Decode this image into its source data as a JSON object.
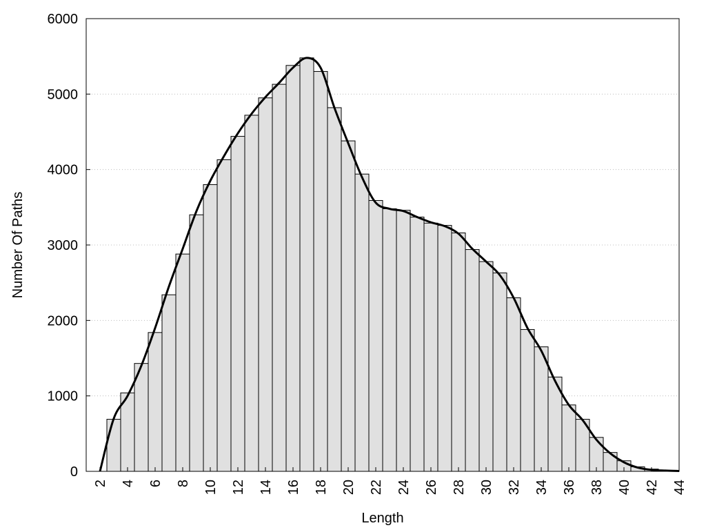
{
  "chart_data": {
    "type": "histogram",
    "xlabel": "Length",
    "ylabel": "Number Of Paths",
    "bins": [
      2.5,
      3.5,
      4.5,
      5.5,
      6.5,
      7.5,
      8.5,
      9.5,
      10.5,
      11.5,
      12.5,
      13.5,
      14.5,
      15.5,
      16.5,
      17.5,
      18.5,
      19.5,
      20.5,
      21.5,
      22.5,
      23.5,
      24.5,
      25.5,
      26.5,
      27.5,
      28.5,
      29.5,
      30.5,
      31.5,
      32.5,
      33.5,
      34.5,
      35.5,
      36.5,
      37.5,
      38.5,
      39.5,
      40.5,
      41.5,
      42.5,
      43.5
    ],
    "values": [
      690,
      1040,
      1430,
      1840,
      2340,
      2880,
      3400,
      3800,
      4130,
      4440,
      4720,
      4950,
      5130,
      5380,
      5480,
      5300,
      4820,
      4380,
      3940,
      3590,
      3480,
      3460,
      3370,
      3290,
      3260,
      3160,
      2940,
      2780,
      2630,
      2300,
      1880,
      1650,
      1250,
      880,
      690,
      450,
      250,
      140,
      60,
      30,
      10
    ],
    "color": "#e0e0e0",
    "curve": {
      "color": "#000000",
      "x": [
        2,
        3,
        4,
        5,
        6,
        7,
        8,
        9,
        10,
        11,
        12,
        13,
        14,
        15,
        16,
        17,
        18,
        19,
        20,
        21,
        22,
        23,
        24,
        25,
        26,
        27,
        28,
        29,
        30,
        31,
        32,
        33,
        34,
        35,
        36,
        37,
        38,
        39,
        40,
        41,
        42,
        43,
        44
      ],
      "values": [
        0,
        700,
        1000,
        1400,
        1900,
        2450,
        2950,
        3450,
        3850,
        4180,
        4480,
        4740,
        4960,
        5150,
        5350,
        5480,
        5350,
        4820,
        4350,
        3900,
        3560,
        3480,
        3450,
        3370,
        3300,
        3250,
        3150,
        2950,
        2780,
        2600,
        2300,
        1900,
        1600,
        1200,
        880,
        680,
        420,
        240,
        120,
        50,
        20,
        10,
        5
      ]
    },
    "xlim": [
      1,
      44
    ],
    "xticks": [
      2,
      4,
      6,
      8,
      10,
      12,
      14,
      16,
      18,
      20,
      22,
      24,
      26,
      28,
      30,
      32,
      34,
      36,
      38,
      40,
      42,
      44
    ],
    "ylim": [
      0,
      6000
    ],
    "yticks": [
      0,
      1000,
      2000,
      3000,
      4000,
      5000,
      6000
    ],
    "grid": true
  }
}
